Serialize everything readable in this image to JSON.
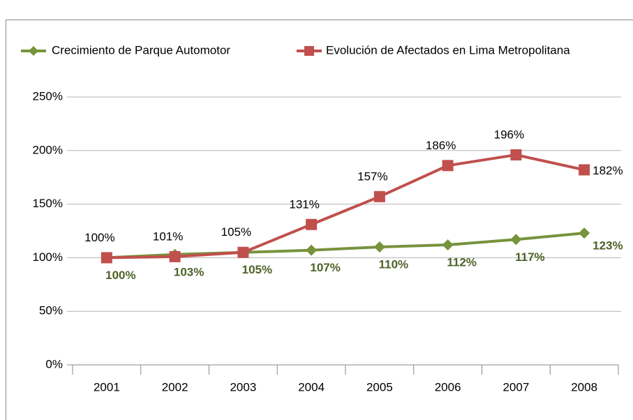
{
  "chart_data": {
    "type": "line",
    "categories": [
      "2001",
      "2002",
      "2003",
      "2004",
      "2005",
      "2006",
      "2007",
      "2008"
    ],
    "series": [
      {
        "name": "Crecimiento de Parque Automotor",
        "color": "#77933c",
        "values": [
          100,
          103,
          105,
          107,
          110,
          112,
          117,
          123
        ],
        "value_labels": [
          "100%",
          "103%",
          "105%",
          "107%",
          "110%",
          "112%",
          "117%",
          "123%"
        ]
      },
      {
        "name": "Evolución  de Afectados en Lima Metropolitana",
        "color": "#c0504d",
        "values": [
          100,
          101,
          105,
          131,
          157,
          186,
          196,
          182
        ],
        "value_labels": [
          "100%",
          "101%",
          "105%",
          "131%",
          "157%",
          "186%",
          "196%",
          "182%"
        ]
      }
    ],
    "ylim": [
      0,
      250
    ],
    "yticks": [
      {
        "value": 0,
        "label": "0%"
      },
      {
        "value": 50,
        "label": "50%"
      },
      {
        "value": 100,
        "label": "100%"
      },
      {
        "value": 150,
        "label": "150%"
      },
      {
        "value": 200,
        "label": "200%"
      },
      {
        "value": 250,
        "label": "250%"
      }
    ],
    "grid": true,
    "legend": "top"
  }
}
